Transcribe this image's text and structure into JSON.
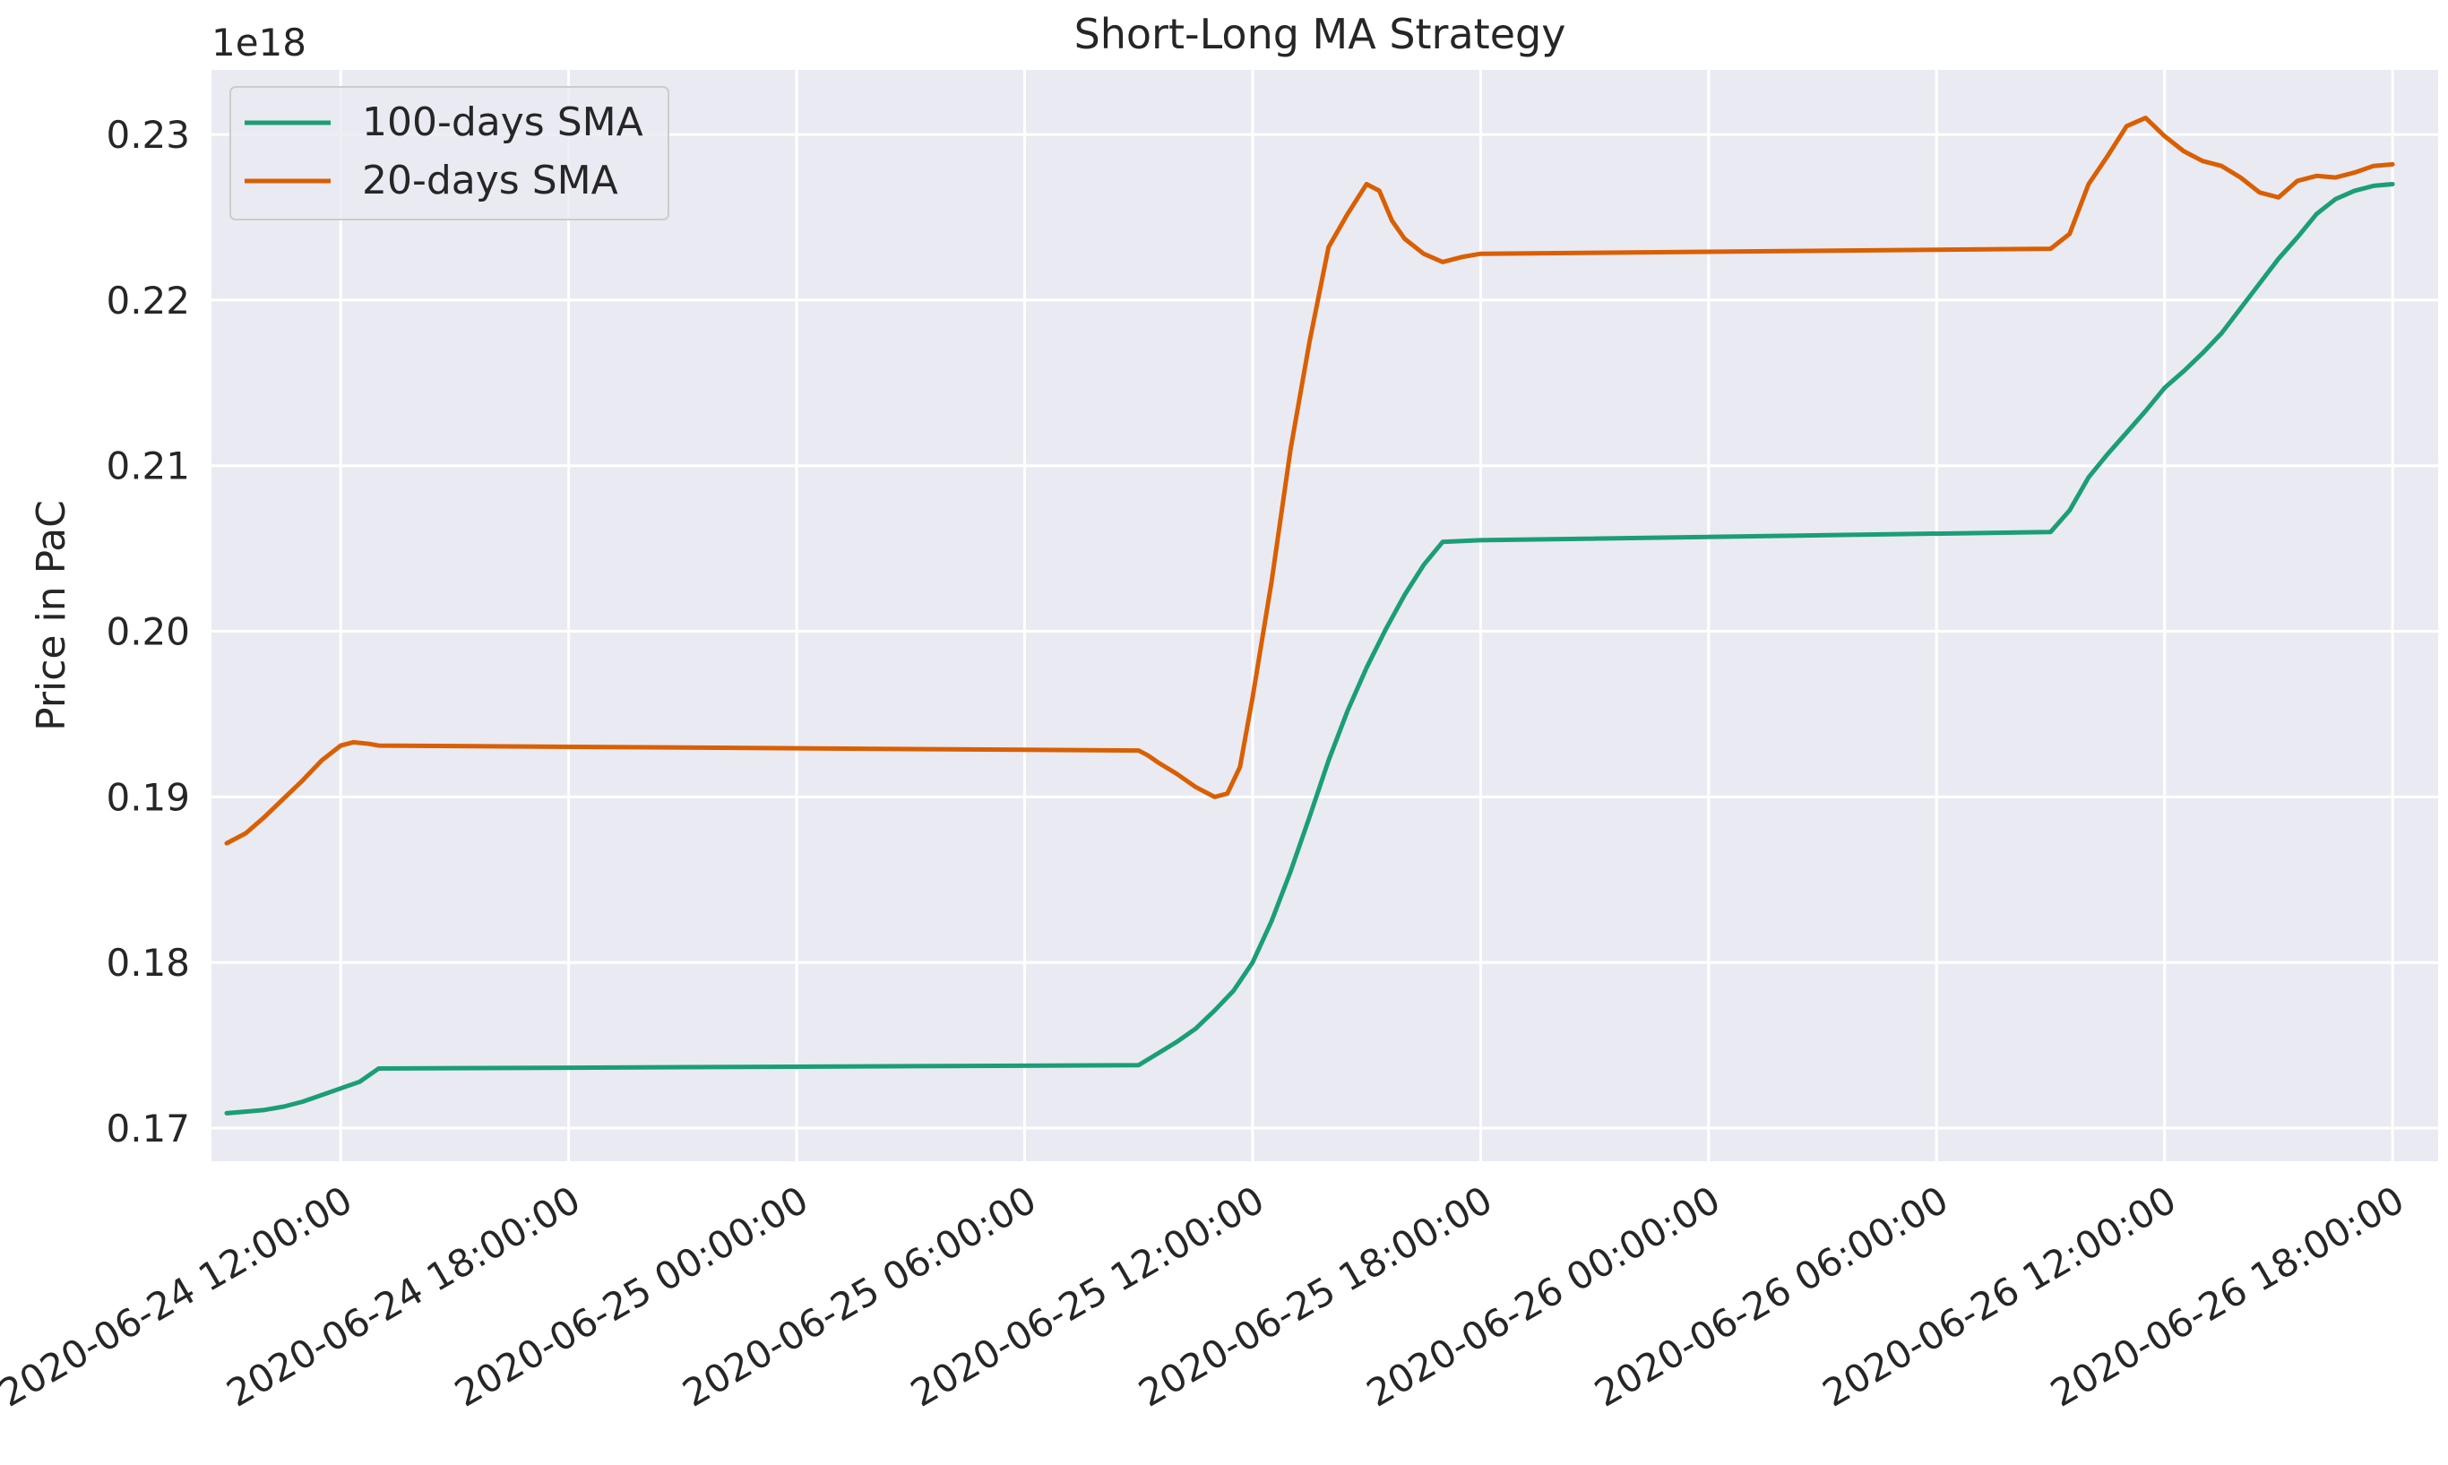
{
  "chart_data": {
    "type": "line",
    "title": "Short-Long MA Strategy",
    "xlabel": "",
    "ylabel": "Price in PaC",
    "y_offset_label": "1e18",
    "y_scale_note": "values in units of 1e18",
    "ylim": [
      0.168,
      0.2339
    ],
    "xlim": [
      "2020-06-24 08:36:00",
      "2020-06-26 19:12:00"
    ],
    "yticks": [
      0.17,
      0.18,
      0.19,
      0.2,
      0.21,
      0.22,
      0.23
    ],
    "ytick_labels": [
      "0.17",
      "0.18",
      "0.19",
      "0.20",
      "0.21",
      "0.22",
      "0.23"
    ],
    "xticks": [
      "2020-06-24 12:00:00",
      "2020-06-24 18:00:00",
      "2020-06-25 00:00:00",
      "2020-06-25 06:00:00",
      "2020-06-25 12:00:00",
      "2020-06-25 18:00:00",
      "2020-06-26 00:00:00",
      "2020-06-26 06:00:00",
      "2020-06-26 12:00:00",
      "2020-06-26 18:00:00"
    ],
    "grid": true,
    "legend_position": "top-left",
    "colors": {
      "background": "#eaeaf2",
      "grid": "#ffffff",
      "text": "#262626"
    },
    "series": [
      {
        "name": "100-days SMA",
        "color": "#1b9e77",
        "points": [
          [
            "2020-06-24 09:00:00",
            0.1709
          ],
          [
            "2020-06-24 09:30:00",
            0.171
          ],
          [
            "2020-06-24 10:00:00",
            0.1711
          ],
          [
            "2020-06-24 10:30:00",
            0.1713
          ],
          [
            "2020-06-24 11:00:00",
            0.1716
          ],
          [
            "2020-06-24 11:30:00",
            0.172
          ],
          [
            "2020-06-24 12:00:00",
            0.1724
          ],
          [
            "2020-06-24 12:30:00",
            0.1728
          ],
          [
            "2020-06-24 13:00:00",
            0.1736
          ],
          [
            "2020-06-25 09:00:00",
            0.1738
          ],
          [
            "2020-06-25 09:30:00",
            0.1745
          ],
          [
            "2020-06-25 10:00:00",
            0.1752
          ],
          [
            "2020-06-25 10:30:00",
            0.176
          ],
          [
            "2020-06-25 11:00:00",
            0.1771
          ],
          [
            "2020-06-25 11:30:00",
            0.1783
          ],
          [
            "2020-06-25 12:00:00",
            0.18
          ],
          [
            "2020-06-25 12:30:00",
            0.1825
          ],
          [
            "2020-06-25 13:00:00",
            0.1855
          ],
          [
            "2020-06-25 13:30:00",
            0.1888
          ],
          [
            "2020-06-25 14:00:00",
            0.1922
          ],
          [
            "2020-06-25 14:30:00",
            0.1952
          ],
          [
            "2020-06-25 15:00:00",
            0.1978
          ],
          [
            "2020-06-25 15:30:00",
            0.2001
          ],
          [
            "2020-06-25 16:00:00",
            0.2022
          ],
          [
            "2020-06-25 16:30:00",
            0.204
          ],
          [
            "2020-06-25 17:00:00",
            0.2054
          ],
          [
            "2020-06-25 18:00:00",
            0.2055
          ],
          [
            "2020-06-26 09:00:00",
            0.206
          ],
          [
            "2020-06-26 09:30:00",
            0.2073
          ],
          [
            "2020-06-26 10:00:00",
            0.2093
          ],
          [
            "2020-06-26 10:30:00",
            0.2107
          ],
          [
            "2020-06-26 11:00:00",
            0.212
          ],
          [
            "2020-06-26 11:30:00",
            0.2133
          ],
          [
            "2020-06-26 12:00:00",
            0.2147
          ],
          [
            "2020-06-26 12:30:00",
            0.2157
          ],
          [
            "2020-06-26 13:00:00",
            0.2168
          ],
          [
            "2020-06-26 13:30:00",
            0.218
          ],
          [
            "2020-06-26 14:00:00",
            0.2195
          ],
          [
            "2020-06-26 14:30:00",
            0.221
          ],
          [
            "2020-06-26 15:00:00",
            0.2225
          ],
          [
            "2020-06-26 15:30:00",
            0.2238
          ],
          [
            "2020-06-26 16:00:00",
            0.2252
          ],
          [
            "2020-06-26 16:30:00",
            0.2261
          ],
          [
            "2020-06-26 17:00:00",
            0.2266
          ],
          [
            "2020-06-26 17:30:00",
            0.2269
          ],
          [
            "2020-06-26 18:00:00",
            0.227
          ]
        ]
      },
      {
        "name": "20-days SMA",
        "color": "#d95f02",
        "points": [
          [
            "2020-06-24 09:00:00",
            0.1872
          ],
          [
            "2020-06-24 09:30:00",
            0.1878
          ],
          [
            "2020-06-24 10:00:00",
            0.1888
          ],
          [
            "2020-06-24 10:30:00",
            0.1899
          ],
          [
            "2020-06-24 11:00:00",
            0.191
          ],
          [
            "2020-06-24 11:30:00",
            0.1922
          ],
          [
            "2020-06-24 12:00:00",
            0.1931
          ],
          [
            "2020-06-24 12:20:00",
            0.1933
          ],
          [
            "2020-06-24 12:45:00",
            0.1932
          ],
          [
            "2020-06-24 13:00:00",
            0.1931
          ],
          [
            "2020-06-25 09:00:00",
            0.1928
          ],
          [
            "2020-06-25 09:15:00",
            0.1925
          ],
          [
            "2020-06-25 09:30:00",
            0.1921
          ],
          [
            "2020-06-25 10:00:00",
            0.1914
          ],
          [
            "2020-06-25 10:30:00",
            0.1906
          ],
          [
            "2020-06-25 11:00:00",
            0.19
          ],
          [
            "2020-06-25 11:20:00",
            0.1902
          ],
          [
            "2020-06-25 11:40:00",
            0.1918
          ],
          [
            "2020-06-25 12:00:00",
            0.196
          ],
          [
            "2020-06-25 12:30:00",
            0.203
          ],
          [
            "2020-06-25 13:00:00",
            0.211
          ],
          [
            "2020-06-25 13:30:00",
            0.2175
          ],
          [
            "2020-06-25 14:00:00",
            0.2232
          ],
          [
            "2020-06-25 14:30:00",
            0.2252
          ],
          [
            "2020-06-25 15:00:00",
            0.227
          ],
          [
            "2020-06-25 15:20:00",
            0.2266
          ],
          [
            "2020-06-25 15:40:00",
            0.2248
          ],
          [
            "2020-06-25 16:00:00",
            0.2237
          ],
          [
            "2020-06-25 16:30:00",
            0.2228
          ],
          [
            "2020-06-25 17:00:00",
            0.2223
          ],
          [
            "2020-06-25 17:30:00",
            0.2226
          ],
          [
            "2020-06-25 18:00:00",
            0.2228
          ],
          [
            "2020-06-26 09:00:00",
            0.2231
          ],
          [
            "2020-06-26 09:30:00",
            0.224
          ],
          [
            "2020-06-26 10:00:00",
            0.227
          ],
          [
            "2020-06-26 10:30:00",
            0.2287
          ],
          [
            "2020-06-26 11:00:00",
            0.2305
          ],
          [
            "2020-06-26 11:30:00",
            0.231
          ],
          [
            "2020-06-26 12:00:00",
            0.2299
          ],
          [
            "2020-06-26 12:30:00",
            0.229
          ],
          [
            "2020-06-26 13:00:00",
            0.2284
          ],
          [
            "2020-06-26 13:30:00",
            0.2281
          ],
          [
            "2020-06-26 14:00:00",
            0.2274
          ],
          [
            "2020-06-26 14:30:00",
            0.2265
          ],
          [
            "2020-06-26 15:00:00",
            0.2262
          ],
          [
            "2020-06-26 15:30:00",
            0.2272
          ],
          [
            "2020-06-26 16:00:00",
            0.2275
          ],
          [
            "2020-06-26 16:30:00",
            0.2274
          ],
          [
            "2020-06-26 17:00:00",
            0.2277
          ],
          [
            "2020-06-26 17:30:00",
            0.2281
          ],
          [
            "2020-06-26 18:00:00",
            0.2282
          ]
        ]
      }
    ]
  }
}
